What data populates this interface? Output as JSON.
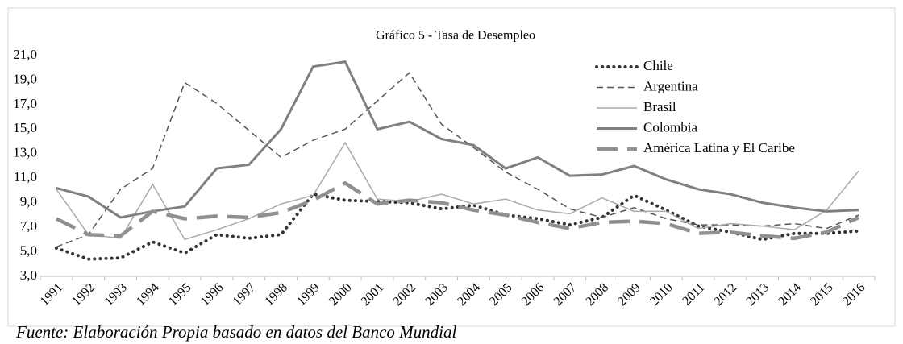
{
  "chart_data": {
    "type": "line",
    "title": "Gráfico 5 - Tasa de  Desempleo",
    "categories": [
      "1991",
      "1992",
      "1993",
      "1994",
      "1995",
      "1996",
      "1997",
      "1998",
      "1999",
      "2000",
      "2001",
      "2002",
      "2003",
      "2004",
      "2005",
      "2006",
      "2007",
      "2008",
      "2009",
      "2010",
      "2011",
      "2012",
      "2013",
      "2014",
      "2015",
      "2016"
    ],
    "ylim": [
      3,
      21
    ],
    "yticks": [
      {
        "value": 3,
        "label": "3,0"
      },
      {
        "value": 5,
        "label": "5,0"
      },
      {
        "value": 7,
        "label": "7,0"
      },
      {
        "value": 9,
        "label": "9,0"
      },
      {
        "value": 11,
        "label": "11,0"
      },
      {
        "value": 13,
        "label": "13,0"
      },
      {
        "value": 15,
        "label": "15,0"
      },
      {
        "value": 17,
        "label": "17,0"
      },
      {
        "value": 19,
        "label": "19,0"
      },
      {
        "value": 21,
        "label": "21,0"
      }
    ],
    "grid": false,
    "legend": "upper right",
    "series": [
      {
        "name": "Chile",
        "color": "#333333",
        "dash": "dotted",
        "values": [
          5.3,
          4.4,
          4.5,
          5.8,
          4.9,
          6.4,
          6.1,
          6.4,
          9.7,
          9.2,
          9.1,
          9.0,
          8.5,
          8.8,
          8.0,
          7.7,
          7.2,
          7.8,
          9.6,
          8.4,
          7.1,
          6.6,
          6.0,
          6.5,
          6.5,
          6.7
        ]
      },
      {
        "name": "Argentina",
        "color": "#555555",
        "dash": "dashed",
        "values": [
          5.4,
          6.4,
          10.1,
          11.8,
          18.8,
          17.1,
          14.9,
          12.7,
          14.1,
          15.0,
          17.3,
          19.6,
          15.4,
          13.5,
          11.5,
          10.1,
          8.5,
          7.8,
          8.6,
          7.7,
          7.2,
          7.2,
          7.1,
          7.3,
          6.9,
          8.0
        ]
      },
      {
        "name": "Brasil",
        "color": "#aaaaaa",
        "dash": "solid",
        "values": [
          10.1,
          6.4,
          6.1,
          10.5,
          6.0,
          6.8,
          7.7,
          8.9,
          9.6,
          13.9,
          9.3,
          9.1,
          9.7,
          8.9,
          9.3,
          8.4,
          8.1,
          9.4,
          8.3,
          8.3,
          6.9,
          7.3,
          7.1,
          6.8,
          8.4,
          11.6
        ]
      },
      {
        "name": "Colombia",
        "color": "#808080",
        "dash": "thick",
        "values": [
          10.2,
          9.5,
          7.8,
          8.3,
          8.7,
          11.8,
          12.1,
          15.0,
          20.1,
          20.5,
          15.0,
          15.6,
          14.2,
          13.7,
          11.8,
          12.7,
          11.2,
          11.3,
          12.0,
          10.9,
          10.1,
          9.7,
          9.0,
          8.6,
          8.3,
          8.4
        ]
      },
      {
        "name": "América Latina y El Caribe",
        "color": "#909090",
        "dash": "longdash",
        "values": [
          7.7,
          6.4,
          6.3,
          8.3,
          7.7,
          7.9,
          7.8,
          8.2,
          9.2,
          10.6,
          8.9,
          9.2,
          9.0,
          8.4,
          8.0,
          7.4,
          6.9,
          7.4,
          7.5,
          7.3,
          6.5,
          6.6,
          6.3,
          6.1,
          6.6,
          7.8
        ]
      }
    ]
  },
  "footer": "Fuente: Elaboración Propia basado en datos del Banco Mundial"
}
